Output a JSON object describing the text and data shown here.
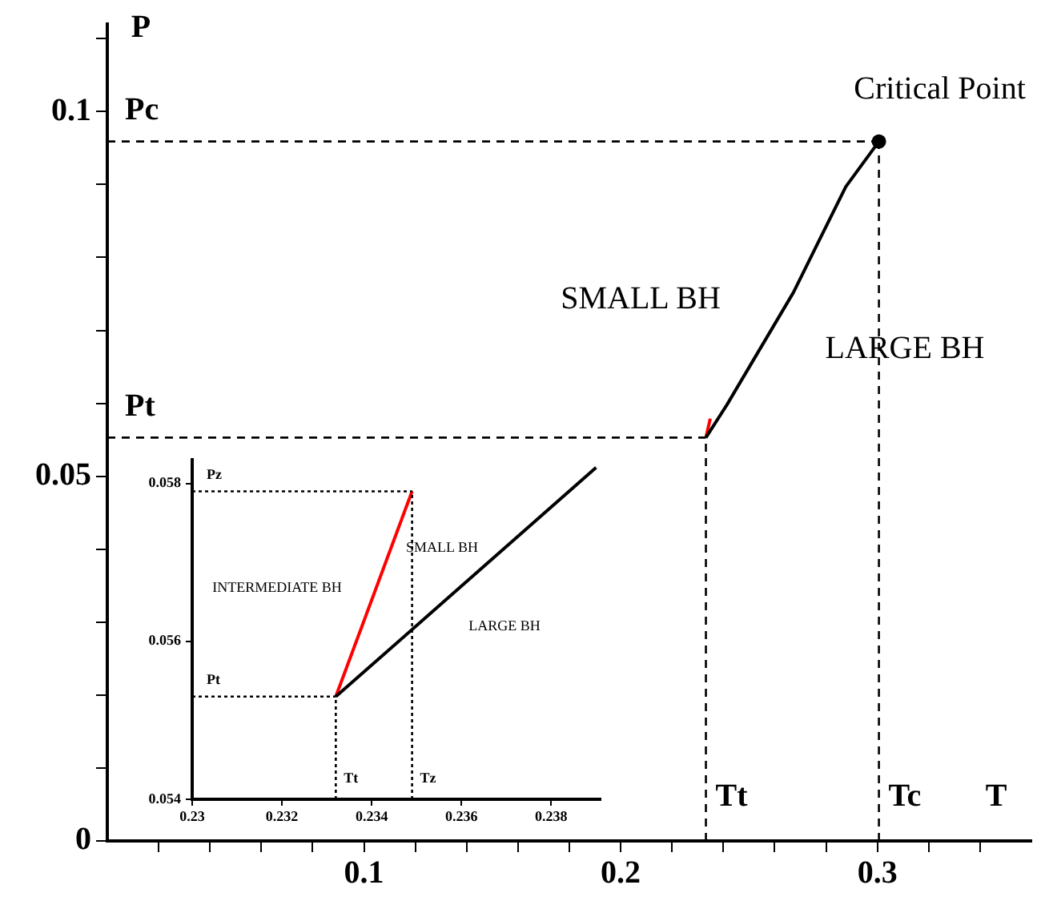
{
  "chart_data": [
    {
      "type": "line",
      "xlabel": "T",
      "ylabel": "P",
      "xlim": [
        0,
        0.36
      ],
      "ylim": [
        0,
        0.112
      ],
      "xticks": [
        {
          "value": 0.02,
          "label": null
        },
        {
          "value": 0.04,
          "label": null
        },
        {
          "value": 0.06,
          "label": null
        },
        {
          "value": 0.08,
          "label": null
        },
        0.1,
        {
          "value": 0.12,
          "label": null
        },
        {
          "value": 0.14,
          "label": null
        },
        {
          "value": 0.16,
          "label": null
        },
        {
          "value": 0.18,
          "label": null
        },
        0.2,
        {
          "value": 0.22,
          "label": null
        },
        {
          "value": 0.24,
          "label": null
        },
        {
          "value": 0.26,
          "label": null
        },
        {
          "value": 0.28,
          "label": null
        },
        0.3,
        {
          "value": 0.32,
          "label": null
        },
        {
          "value": 0.34,
          "label": null
        }
      ],
      "yticks": [
        0,
        {
          "value": 0.01,
          "label": null
        },
        {
          "value": 0.02,
          "label": null
        },
        {
          "value": 0.03,
          "label": null
        },
        {
          "value": 0.04,
          "label": null
        },
        0.05,
        {
          "value": 0.06,
          "label": null
        },
        {
          "value": 0.07,
          "label": null
        },
        {
          "value": 0.08,
          "label": null
        },
        {
          "value": 0.09,
          "label": null
        },
        0.1,
        {
          "value": 0.11,
          "label": null
        }
      ],
      "series": [
        {
          "type": "line",
          "color": "#000000",
          "x": [
            0.2332,
            0.2414,
            0.2673,
            0.2877,
            0.3006
          ],
          "values": [
            0.0553,
            0.0598,
            0.0752,
            0.0897,
            0.0959
          ]
        },
        {
          "type": "line",
          "color": "#ff0000",
          "x": [
            0.2332,
            0.2349
          ],
          "values": [
            0.0553,
            0.0579
          ]
        },
        {
          "type": "scatter",
          "color": "#000000",
          "marker": "circle",
          "x": [
            0.3006
          ],
          "values": [
            0.0959
          ]
        }
      ],
      "ref_lines": [
        {
          "axis": "y",
          "value": 0.0959,
          "label": "Pc",
          "line_style": "dashed"
        },
        {
          "axis": "y",
          "value": 0.0553,
          "label": "Pt",
          "line_style": "dashed"
        },
        {
          "axis": "x",
          "value": 0.2332,
          "label": "Tt",
          "line_style": "dashed"
        },
        {
          "axis": "x",
          "value": 0.3006,
          "label": "Tc",
          "line_style": "dashed"
        }
      ],
      "annotations": [
        {
          "text": "Critical Point",
          "x": 0.3006,
          "y": 0.0959
        },
        "SMALL BH",
        "LARGE BH"
      ],
      "grid": false,
      "legend": false
    },
    {
      "type": "line",
      "xlim": [
        0.23,
        0.2391
      ],
      "ylim": [
        0.054,
        0.0583
      ],
      "xticks": [
        0.23,
        0.232,
        0.234,
        0.236,
        0.238
      ],
      "yticks": [
        0.054,
        0.056,
        0.058
      ],
      "series": [
        {
          "type": "line",
          "color": "#000000",
          "x": [
            0.2332,
            0.239
          ],
          "values": [
            0.0553,
            0.0582
          ]
        },
        {
          "type": "line",
          "color": "#ff0000",
          "x": [
            0.2332,
            0.2349
          ],
          "values": [
            0.0553,
            0.0579
          ]
        }
      ],
      "ref_lines": [
        {
          "axis": "y",
          "value": 0.0579,
          "label": "Pz",
          "line_style": "dotted"
        },
        {
          "axis": "y",
          "value": 0.0553,
          "label": "Pt",
          "line_style": "dotted"
        },
        {
          "axis": "x",
          "value": 0.2332,
          "label": "Tt",
          "line_style": "dotted"
        },
        {
          "axis": "x",
          "value": 0.2349,
          "label": "Tz",
          "line_style": "dotted"
        }
      ],
      "annotations": [
        "INTERMEDIATE BH",
        "SMALL BH",
        "LARGE BH"
      ],
      "grid": false,
      "legend": false
    }
  ]
}
